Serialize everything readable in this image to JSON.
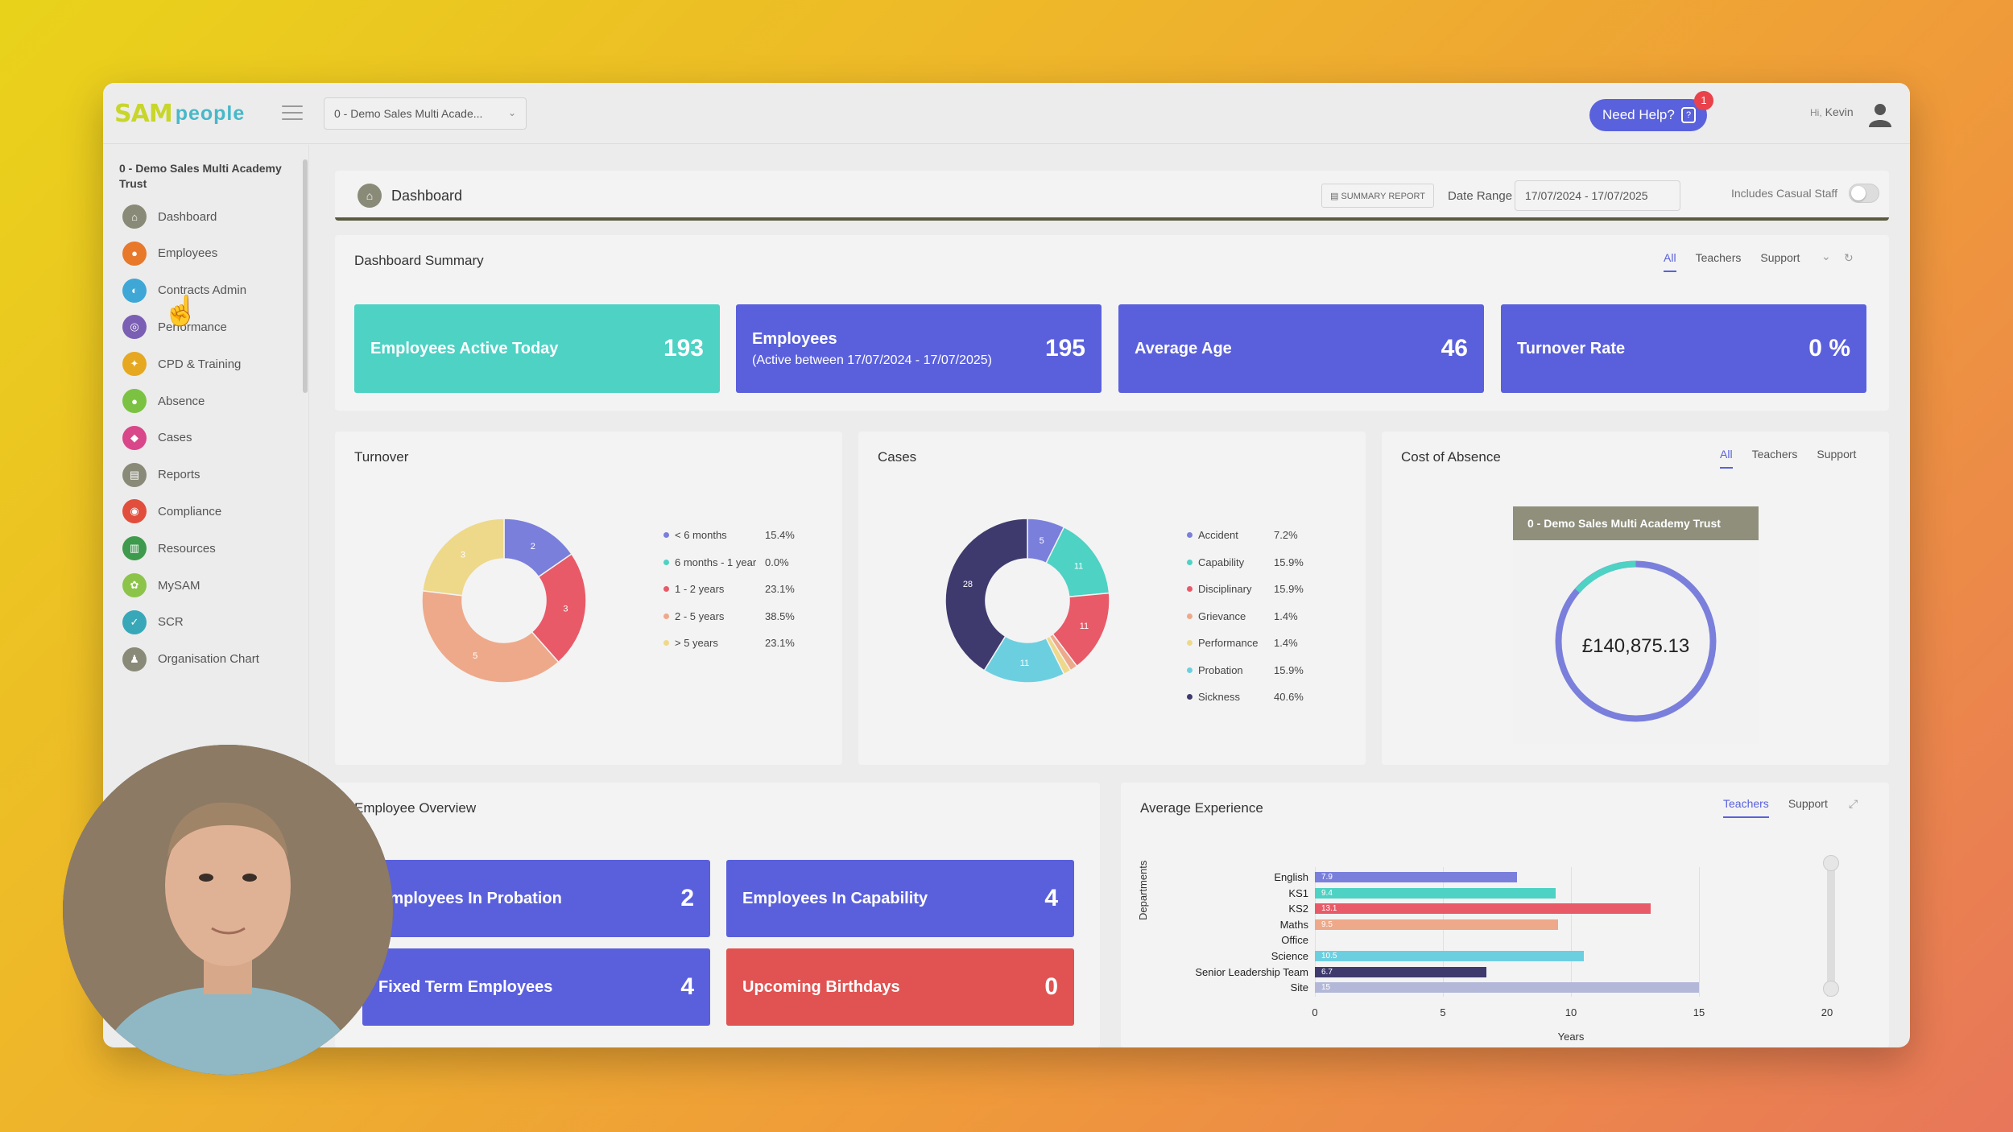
{
  "app": {
    "logo_sam": "SAM",
    "logo_people": "people",
    "org_select": "0 - Demo Sales Multi Acade...",
    "help_label": "Need Help?",
    "help_badge": "1",
    "greeting": "Hi,",
    "user_name": "Kevin"
  },
  "sidebar": {
    "org_title": "0 - Demo Sales Multi Academy Trust",
    "items": [
      {
        "label": "Dashboard",
        "color": "#8a8a78"
      },
      {
        "label": "Employees",
        "color": "#e8782a"
      },
      {
        "label": "Contracts Admin",
        "color": "#3ea7d6"
      },
      {
        "label": "Performance",
        "color": "#7b5fb5"
      },
      {
        "label": "CPD & Training",
        "color": "#e6a821"
      },
      {
        "label": "Absence",
        "color": "#7cc242"
      },
      {
        "label": "Cases",
        "color": "#d9468a"
      },
      {
        "label": "Reports",
        "color": "#8a8a78"
      },
      {
        "label": "Compliance",
        "color": "#e24e3c"
      },
      {
        "label": "Resources",
        "color": "#3e9a4c"
      },
      {
        "label": "MySAM",
        "color": "#8cc44a"
      },
      {
        "label": "SCR",
        "color": "#38a8b8"
      },
      {
        "label": "Organisation Chart",
        "color": "#8a8a78"
      }
    ]
  },
  "header": {
    "title": "Dashboard",
    "summary_report": "SUMMARY REPORT",
    "date_range_label": "Date Range",
    "date_range_value": "17/07/2024 - 17/07/2025",
    "casual_label": "Includes Casual Staff"
  },
  "summary": {
    "title": "Dashboard Summary",
    "tabs": [
      "All",
      "Teachers",
      "Support"
    ],
    "tiles": [
      {
        "label": "Employees Active Today",
        "sub": "",
        "value": "193"
      },
      {
        "label": "Employees",
        "sub": "(Active between 17/07/2024 - 17/07/2025)",
        "value": "195"
      },
      {
        "label": "Average Age",
        "sub": "",
        "value": "46"
      },
      {
        "label": "Turnover Rate",
        "sub": "",
        "value": "0 %"
      }
    ]
  },
  "turnover": {
    "title": "Turnover",
    "legend": [
      {
        "label": "< 6 months",
        "pct": "15.4%",
        "color": "#7a7fdc"
      },
      {
        "label": "6 months - 1 year",
        "pct": "0.0%",
        "color": "#4dd2c4"
      },
      {
        "label": "1 - 2 years",
        "pct": "23.1%",
        "color": "#e85a68"
      },
      {
        "label": "2 - 5 years",
        "pct": "38.5%",
        "color": "#eea98a"
      },
      {
        "label": "> 5 years",
        "pct": "23.1%",
        "color": "#eed88a"
      }
    ]
  },
  "cases": {
    "title": "Cases",
    "legend": [
      {
        "label": "Accident",
        "pct": "7.2%",
        "color": "#7a7fdc"
      },
      {
        "label": "Capability",
        "pct": "15.9%",
        "color": "#4dd2c4"
      },
      {
        "label": "Disciplinary",
        "pct": "15.9%",
        "color": "#e85a68"
      },
      {
        "label": "Grievance",
        "pct": "1.4%",
        "color": "#eea98a"
      },
      {
        "label": "Performance",
        "pct": "1.4%",
        "color": "#eed88a"
      },
      {
        "label": "Probation",
        "pct": "15.9%",
        "color": "#6ccfe0"
      },
      {
        "label": "Sickness",
        "pct": "40.6%",
        "color": "#3e3a6e"
      }
    ]
  },
  "cost": {
    "title": "Cost of Absence",
    "tabs": [
      "All",
      "Teachers",
      "Support"
    ],
    "org": "0 - Demo Sales Multi Academy Trust",
    "value": "£140,875.13"
  },
  "overview": {
    "title": "Employee Overview",
    "tiles": [
      {
        "label": "Employees In Probation",
        "value": "2"
      },
      {
        "label": "Employees In Capability",
        "value": "4"
      },
      {
        "label": "Fixed Term Employees",
        "value": "4"
      },
      {
        "label": "Upcoming Birthdays",
        "value": "0"
      }
    ]
  },
  "experience": {
    "title": "Average Experience",
    "tabs": [
      "Teachers",
      "Support"
    ]
  },
  "chart_data": [
    {
      "type": "pie",
      "title": "Turnover",
      "categories": [
        "< 6 months",
        "6 months - 1 year",
        "1 - 2 years",
        "2 - 5 years",
        "> 5 years"
      ],
      "values": [
        2,
        0,
        3,
        5,
        3
      ],
      "colors": [
        "#7a7fdc",
        "#4dd2c4",
        "#e85a68",
        "#eea98a",
        "#eed88a"
      ]
    },
    {
      "type": "pie",
      "title": "Cases",
      "categories": [
        "Accident",
        "Capability",
        "Disciplinary",
        "Grievance",
        "Performance",
        "Probation",
        "Sickness"
      ],
      "values": [
        5,
        11,
        11,
        1,
        1,
        11,
        28
      ],
      "colors": [
        "#7a7fdc",
        "#4dd2c4",
        "#e85a68",
        "#eea98a",
        "#eed88a",
        "#6ccfe0",
        "#3e3a6e"
      ]
    },
    {
      "type": "bar",
      "title": "Average Experience",
      "orientation": "horizontal",
      "ylabel": "Departments",
      "xlabel": "Years",
      "categories": [
        "English",
        "KS1",
        "KS2",
        "Maths",
        "Office",
        "Science",
        "Senior Leadership Team",
        "Site"
      ],
      "values": [
        7.9,
        9.4,
        13.1,
        9.5,
        null,
        10.5,
        6.7,
        15
      ],
      "value_labels": [
        "7.9",
        "9.4",
        "13.1",
        "9.5",
        "",
        "10.5",
        "6.7",
        "15"
      ],
      "colors": [
        "#7a7fdc",
        "#4dd2c4",
        "#e85a68",
        "#eea98a",
        "#eed88a",
        "#6ccfe0",
        "#3e3a6e",
        "#b4b8d8"
      ],
      "xlim": [
        0,
        20
      ],
      "xticks": [
        0,
        5,
        10,
        15,
        20
      ]
    }
  ]
}
